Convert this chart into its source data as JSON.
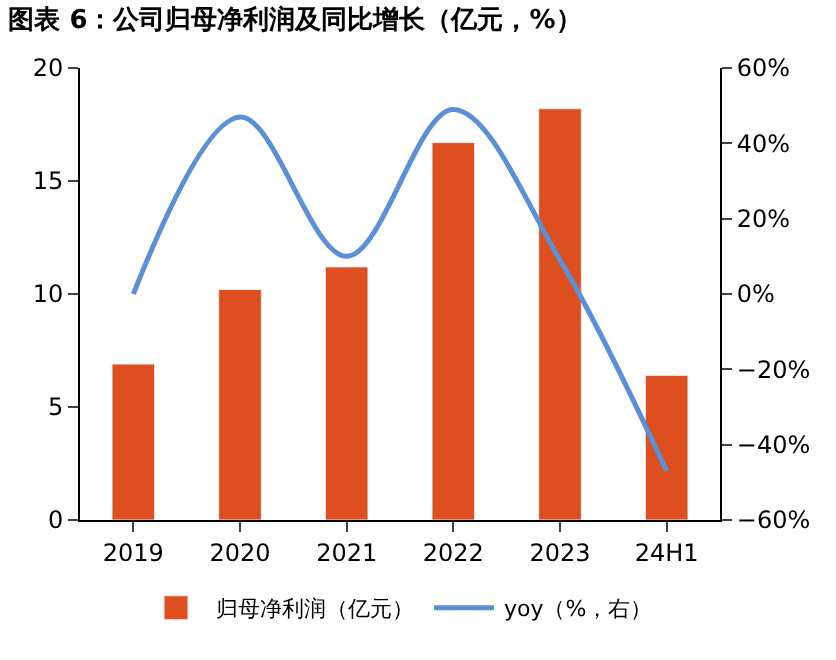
{
  "chart_data": {
    "type": "bar",
    "title": "图表 6：公司归母净利润及同比增长（亿元，%）",
    "categories": [
      "2019",
      "2020",
      "2021",
      "2022",
      "2023",
      "24H1"
    ],
    "series": [
      {
        "name": "归母净利润（亿元）",
        "color": "#dd4f1f",
        "values": [
          6.9,
          10.2,
          11.2,
          16.7,
          18.2,
          6.4
        ]
      },
      {
        "name": "yoy（%，右）",
        "type": "line",
        "axis": "y2",
        "color": "#5b8fd6",
        "values": [
          0,
          47,
          10,
          49,
          9,
          -47
        ]
      }
    ],
    "ylim": [
      0,
      20
    ],
    "yticks": [
      0,
      5,
      10,
      15,
      20
    ],
    "y2lim": [
      -60,
      60
    ],
    "y2ticks": [
      {
        "value": -60,
        "label": "−60%"
      },
      {
        "value": -40,
        "label": "−40%"
      },
      {
        "value": -20,
        "label": "−20%"
      },
      {
        "value": 0,
        "label": "0%"
      },
      {
        "value": 20,
        "label": "20%"
      },
      {
        "value": 40,
        "label": "40%"
      },
      {
        "value": 60,
        "label": "60%"
      }
    ],
    "legend": "bottom"
  }
}
